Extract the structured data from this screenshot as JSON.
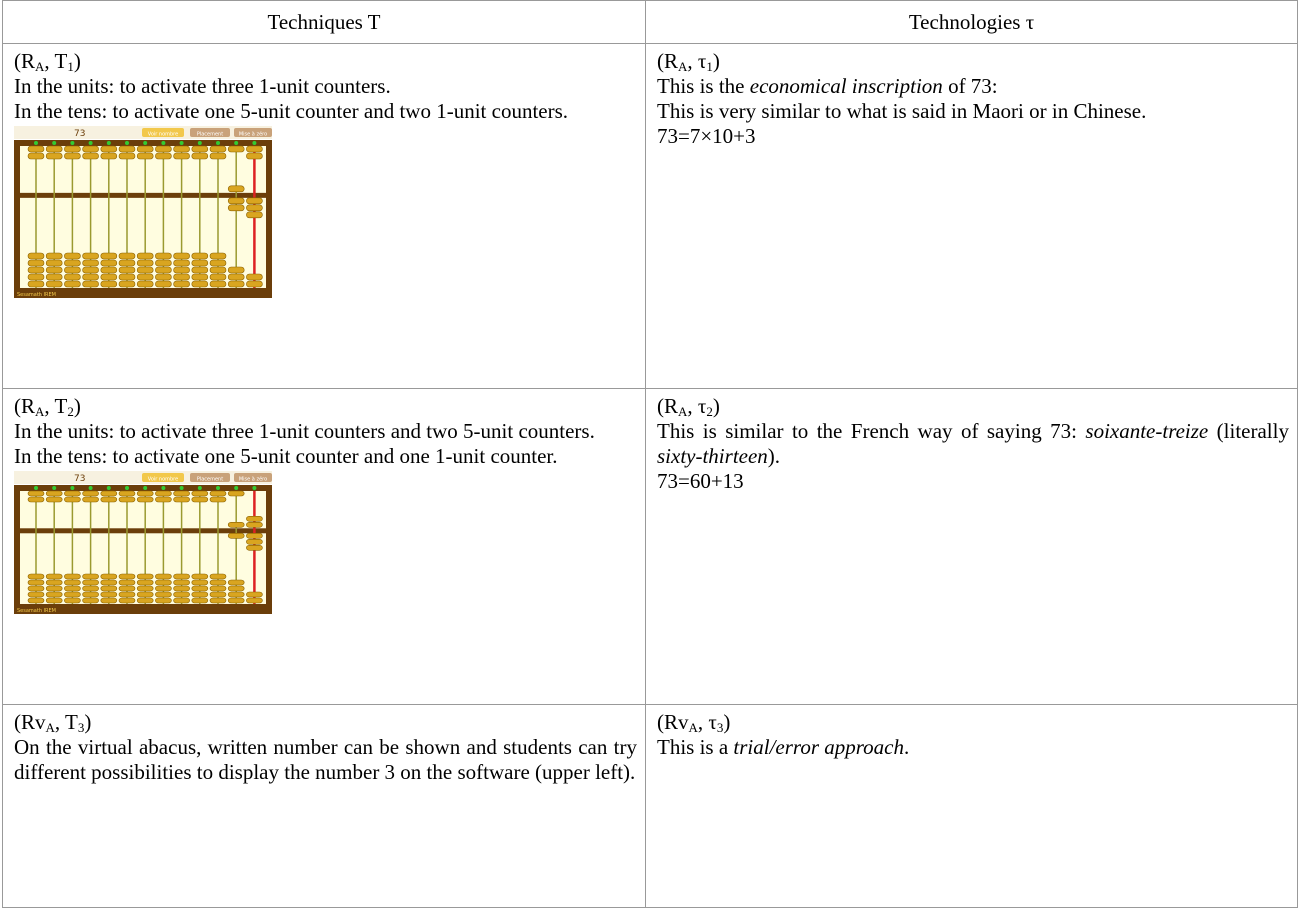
{
  "header": [
    "Techniques T",
    "Technologies τ"
  ],
  "rows": [
    {
      "technique": {
        "label": [
          "(R",
          "A",
          ", T",
          "1",
          ")"
        ],
        "paragraphs": [
          [
            "In the units: to activate three 1-unit counters."
          ],
          [
            "In the tens: to activate one 5-unit counter and two 1-unit counters."
          ]
        ],
        "abacus": {
          "number": "73",
          "buttons": [
            "Voir nombre",
            "Placement",
            "Mise à zéro"
          ],
          "credit": "Sesamath IREM"
        }
      },
      "technology": {
        "label": [
          "(R",
          "A",
          ", τ",
          "1",
          ")"
        ],
        "paragraphs": [
          [
            "This is the ",
            {
              "text": "economical inscription",
              "italic": true
            },
            " of 73:"
          ],
          [
            "This is very similar to what is said in Maori or in Chinese."
          ],
          [
            "73=7×10+3"
          ]
        ]
      }
    },
    {
      "technique": {
        "label": [
          "(R",
          "A",
          ", T",
          "2",
          ")"
        ],
        "paragraphs": [
          [
            "In the units: to activate three 1-unit counters and two 5-unit counters."
          ],
          [
            "In the tens: to activate one 5-unit counter and one 1-unit counter."
          ]
        ],
        "abacus": {
          "number": "73",
          "buttons": [
            "Voir nombre",
            "Placement",
            "Mise à zéro"
          ],
          "credit": "Sesamath IREM"
        }
      },
      "technology": {
        "label": [
          "(R",
          "A",
          ", τ",
          "2",
          ")"
        ],
        "paragraphs": [
          [
            "This is similar to the French way of saying 73: ",
            {
              "text": "soixante-treize",
              "italic": true
            },
            " (literally ",
            {
              "text": "sixty-thirteen",
              "italic": true
            },
            ")."
          ],
          [
            "73=60+13"
          ]
        ]
      }
    },
    {
      "technique": {
        "label": [
          "(Rv",
          "A",
          ", T",
          "3",
          ")"
        ],
        "paragraphs": [
          [
            "On the virtual abacus, written number can be shown and students can try different possibilities to display the number 3 on the software (upper left)."
          ]
        ]
      },
      "technology": {
        "label": [
          "(Rv",
          "A",
          ", τ",
          "3",
          ")"
        ],
        "paragraphs": [
          [
            "This is a ",
            {
              "text": "trial/error approach",
              "italic": true
            },
            "."
          ]
        ]
      }
    }
  ]
}
